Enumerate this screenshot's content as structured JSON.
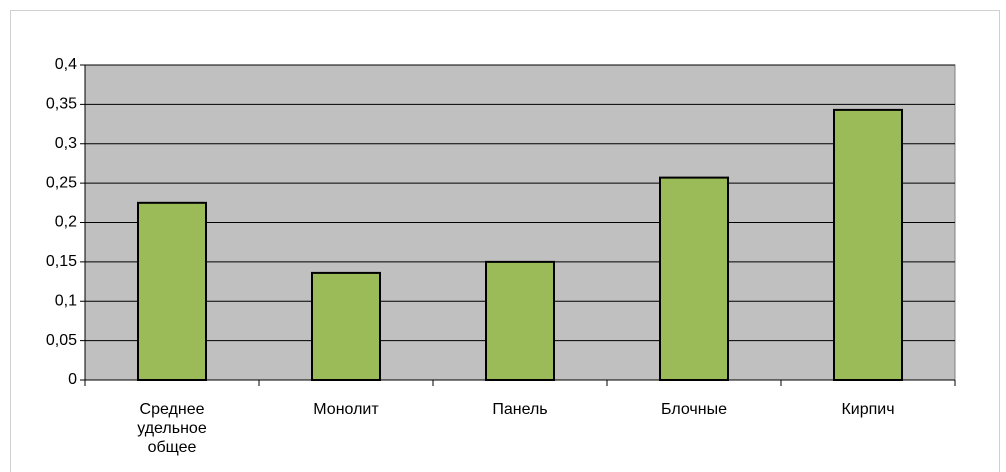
{
  "chart_data": {
    "type": "bar",
    "categories": [
      "Среднее удельное общее",
      "Монолит",
      "Панель",
      "Блочные",
      "Кирпич"
    ],
    "values": [
      0.225,
      0.136,
      0.15,
      0.257,
      0.343
    ],
    "color": "#9bbb59",
    "ylim": [
      0,
      0.4
    ],
    "yticks": [
      0,
      {
        "value": 0.05,
        "label": "0,05"
      },
      {
        "value": 0.1,
        "label": "0,1"
      },
      {
        "value": 0.15,
        "label": "0,15"
      },
      {
        "value": 0.2,
        "label": "0,2"
      },
      {
        "value": 0.25,
        "label": "0,25"
      },
      {
        "value": 0.3,
        "label": "0,3"
      },
      {
        "value": 0.35,
        "label": "0,35"
      },
      {
        "value": 0.4,
        "label": "0,4"
      }
    ],
    "grid": true
  }
}
